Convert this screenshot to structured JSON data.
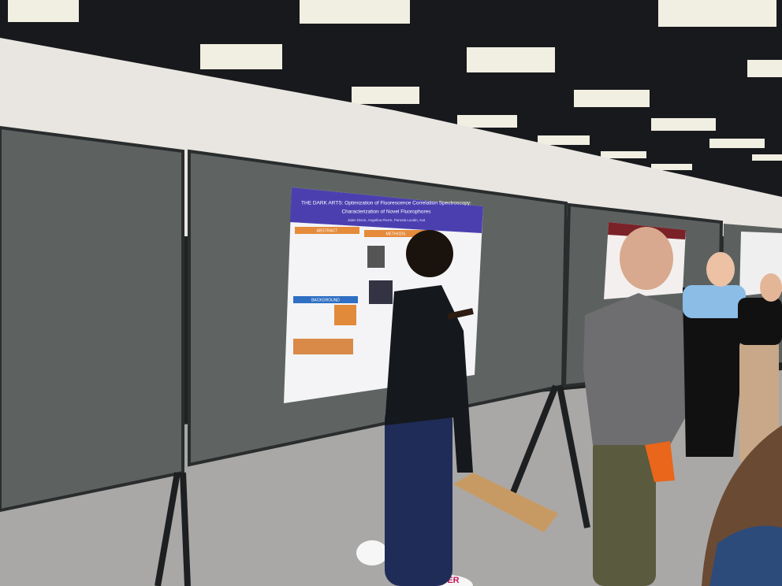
{
  "poster": {
    "title_lines": [
      "THE DARK ARTS: Optimization of Fluorescence Correlation Spectroscopy:",
      "Characterization of Novel Fluorophores"
    ],
    "authors": "Jalen Dixon, Angelina Pierre, Pamela Lundin, Kat",
    "sections": [
      "ABSTRACT",
      "METHODS",
      "BACKGROUND"
    ]
  },
  "floor_sign": "POSTER"
}
